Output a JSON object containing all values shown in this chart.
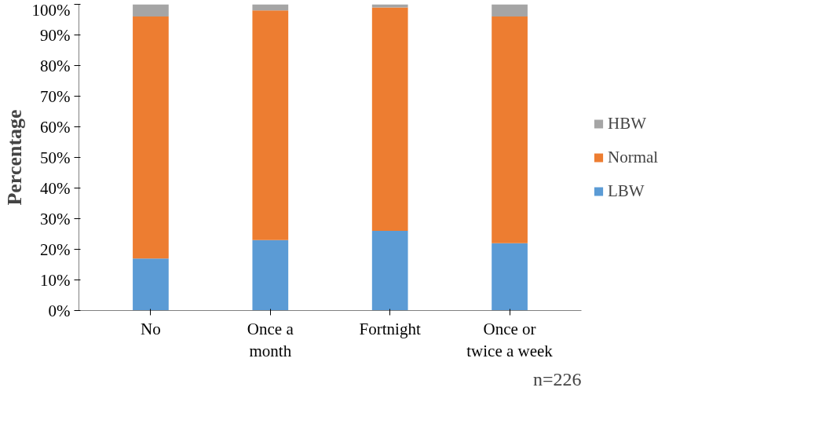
{
  "chart_data": {
    "type": "bar",
    "stacked": true,
    "ylabel": "Percentage",
    "categories": [
      "No",
      "Once a month",
      "Fortnight",
      "Once or twice a week"
    ],
    "series": [
      {
        "name": "LBW",
        "color": "#5b9bd5",
        "values": [
          17,
          23,
          26,
          22
        ]
      },
      {
        "name": "Normal",
        "color": "#ed7d31",
        "values": [
          79,
          75,
          73,
          74
        ]
      },
      {
        "name": "HBW",
        "color": "#a5a5a5",
        "values": [
          4,
          2,
          1,
          4
        ]
      }
    ],
    "ylim": [
      0,
      100
    ],
    "yticks": [
      {
        "value": 0,
        "label": "0%"
      },
      {
        "value": 10,
        "label": "10%"
      },
      {
        "value": 20,
        "label": "20%"
      },
      {
        "value": 30,
        "label": "30%"
      },
      {
        "value": 40,
        "label": "40%"
      },
      {
        "value": 50,
        "label": "50%"
      },
      {
        "value": 60,
        "label": "60%"
      },
      {
        "value": 70,
        "label": "70%"
      },
      {
        "value": 80,
        "label": "80%"
      },
      {
        "value": 90,
        "label": "90%"
      },
      {
        "value": 100,
        "label": "100%"
      }
    ],
    "grid": false,
    "legend": "right",
    "annotations": [
      "n=226"
    ]
  }
}
